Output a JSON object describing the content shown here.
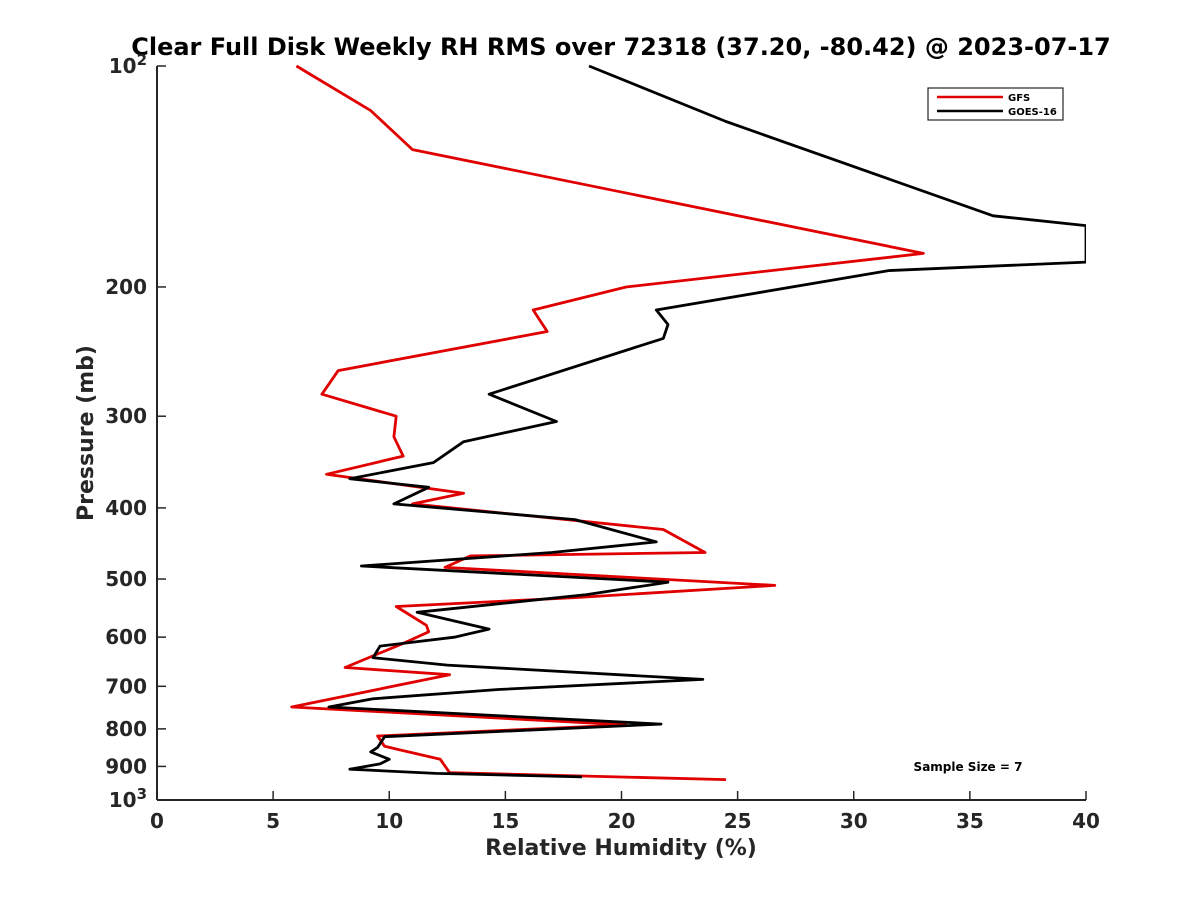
{
  "chart_data": {
    "type": "line",
    "title": "Clear Full Disk Weekly RH RMS over 72318 (37.20, -80.42) @ 2023-07-17",
    "xlabel": "Relative Humidity (%)",
    "ylabel": "Pressure (mb)",
    "xlim": [
      0,
      40
    ],
    "ylim": [
      100,
      1000
    ],
    "y_scale": "log",
    "y_reversed": true,
    "grid": false,
    "legend_position": "top-right",
    "x_ticks": [
      0,
      5,
      10,
      15,
      20,
      25,
      30,
      35,
      40
    ],
    "x_tick_labels": [
      "0",
      "5",
      "10",
      "15",
      "20",
      "25",
      "30",
      "35",
      "40"
    ],
    "y_ticks": [
      100,
      200,
      300,
      400,
      500,
      600,
      700,
      800,
      900,
      1000
    ],
    "y_tick_labels": [
      {
        "base": "10",
        "exp": "2"
      },
      {
        "base": "200",
        "exp": ""
      },
      {
        "base": "300",
        "exp": ""
      },
      {
        "base": "400",
        "exp": ""
      },
      {
        "base": "500",
        "exp": ""
      },
      {
        "base": "600",
        "exp": ""
      },
      {
        "base": "700",
        "exp": ""
      },
      {
        "base": "800",
        "exp": ""
      },
      {
        "base": "900",
        "exp": ""
      },
      {
        "base": "10",
        "exp": "3"
      }
    ],
    "annotation": "Sample Size = 7",
    "series": [
      {
        "name": "GFS",
        "color": "#e00000",
        "points": [
          [
            6.0,
            100
          ],
          [
            9.2,
            115
          ],
          [
            11.0,
            130
          ],
          [
            33.0,
            180
          ],
          [
            20.2,
            200
          ],
          [
            16.2,
            215
          ],
          [
            16.8,
            230
          ],
          [
            7.8,
            260
          ],
          [
            7.1,
            280
          ],
          [
            10.3,
            300
          ],
          [
            10.2,
            320
          ],
          [
            10.6,
            340
          ],
          [
            7.3,
            360
          ],
          [
            13.2,
            382
          ],
          [
            11.0,
            395
          ],
          [
            21.8,
            428
          ],
          [
            23.6,
            460
          ],
          [
            13.5,
            465
          ],
          [
            12.4,
            482
          ],
          [
            26.6,
            510
          ],
          [
            18.0,
            530
          ],
          [
            10.3,
            545
          ],
          [
            11.6,
            578
          ],
          [
            11.7,
            590
          ],
          [
            10.7,
            610
          ],
          [
            8.1,
            660
          ],
          [
            12.6,
            675
          ],
          [
            5.8,
            747
          ],
          [
            20.2,
            790
          ],
          [
            9.5,
            818
          ],
          [
            9.8,
            845
          ],
          [
            10.5,
            855
          ],
          [
            12.2,
            880
          ],
          [
            12.6,
            918
          ],
          [
            24.5,
            938
          ]
        ]
      },
      {
        "name": "GOES-16",
        "color": "#000000",
        "points": [
          [
            18.6,
            100
          ],
          [
            24.5,
            119
          ],
          [
            36.0,
            160
          ],
          [
            40.0,
            165
          ],
          [
            40.0,
            185
          ],
          [
            31.5,
            190
          ],
          [
            21.5,
            215
          ],
          [
            22.0,
            225
          ],
          [
            21.8,
            235
          ],
          [
            14.3,
            280
          ],
          [
            17.2,
            305
          ],
          [
            13.2,
            325
          ],
          [
            11.9,
            347
          ],
          [
            8.3,
            365
          ],
          [
            11.7,
            375
          ],
          [
            10.2,
            395
          ],
          [
            18.0,
            415
          ],
          [
            21.5,
            445
          ],
          [
            17.0,
            460
          ],
          [
            8.8,
            480
          ],
          [
            22.0,
            505
          ],
          [
            18.5,
            525
          ],
          [
            11.2,
            555
          ],
          [
            14.3,
            585
          ],
          [
            12.8,
            600
          ],
          [
            9.6,
            617
          ],
          [
            9.3,
            640
          ],
          [
            12.5,
            655
          ],
          [
            23.5,
            685
          ],
          [
            14.7,
            707
          ],
          [
            9.3,
            728
          ],
          [
            7.4,
            747
          ],
          [
            21.7,
            788
          ],
          [
            9.8,
            820
          ],
          [
            9.5,
            848
          ],
          [
            9.2,
            860
          ],
          [
            10.0,
            880
          ],
          [
            9.6,
            893
          ],
          [
            8.3,
            908
          ],
          [
            12.0,
            920
          ],
          [
            18.3,
            930
          ]
        ]
      }
    ]
  }
}
